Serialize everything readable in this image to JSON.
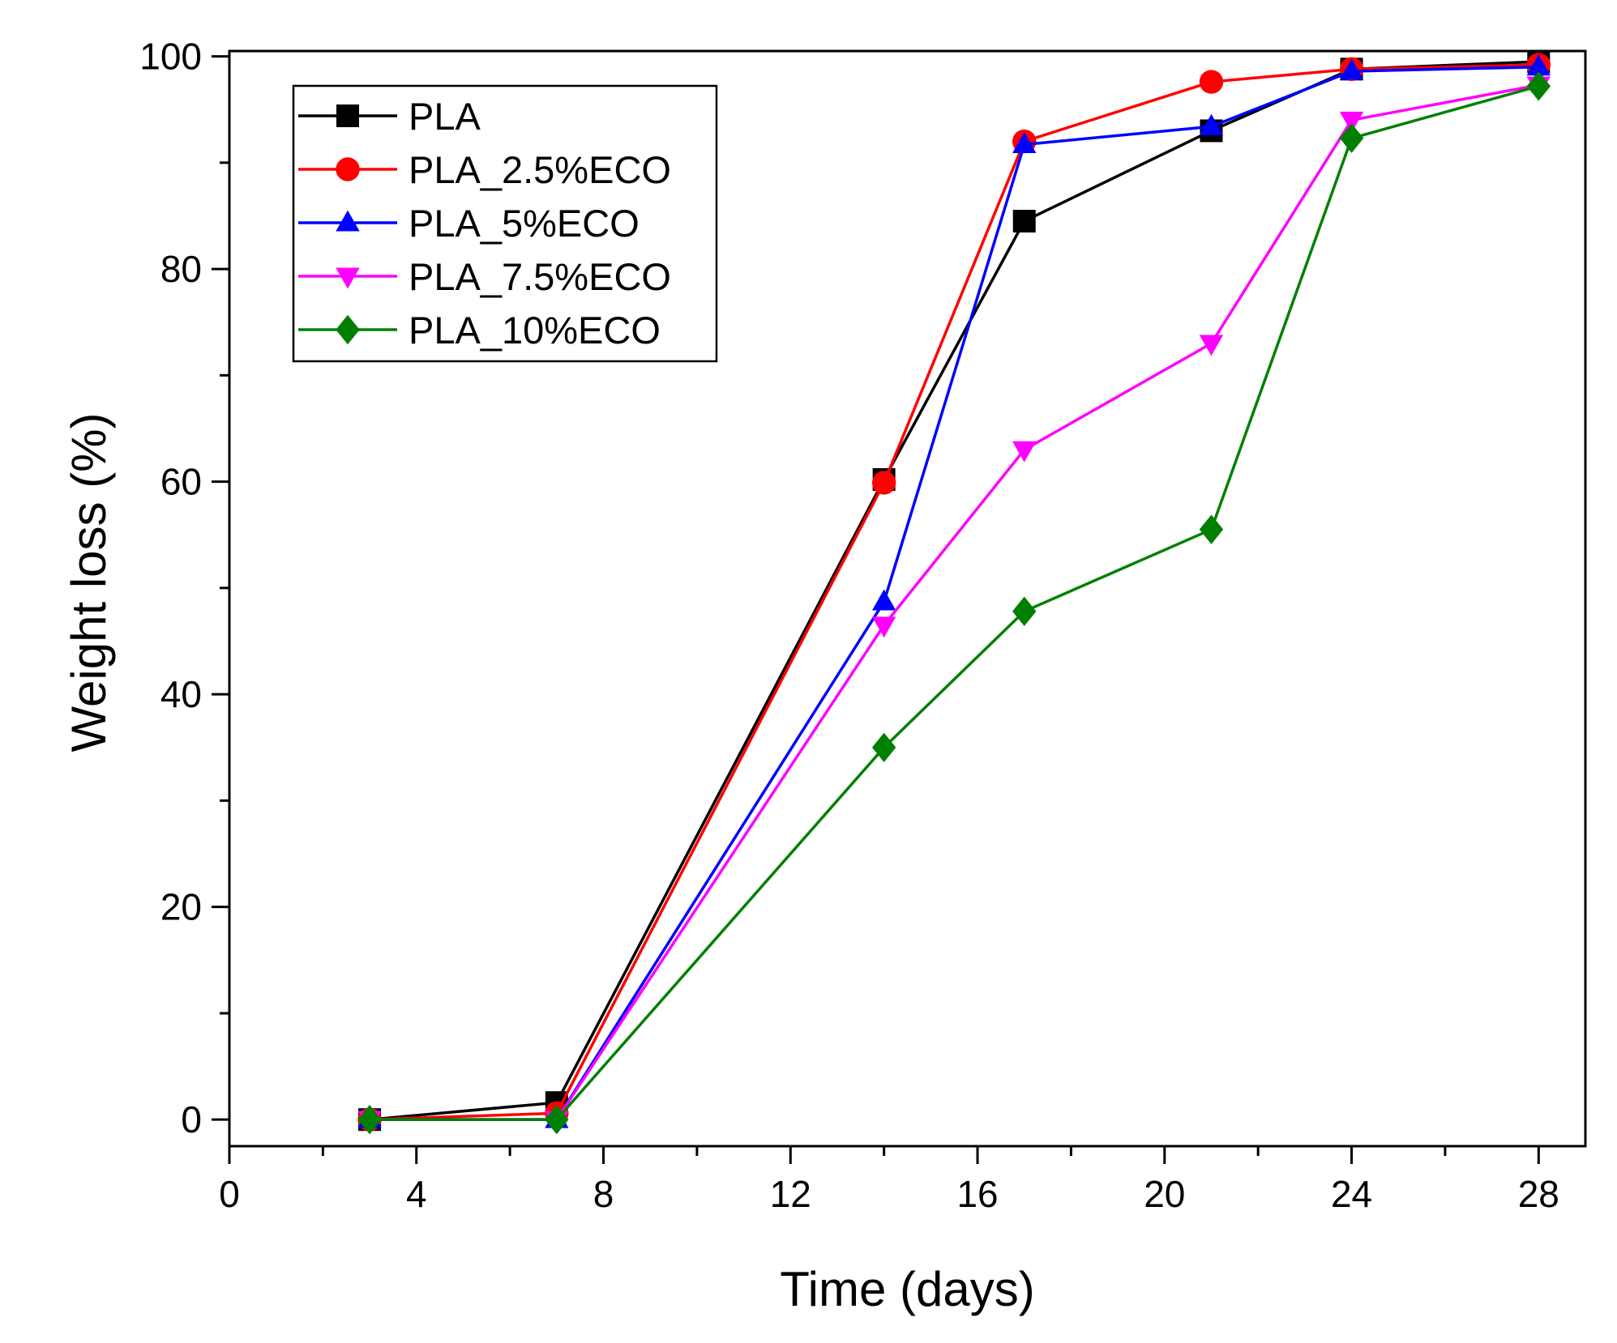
{
  "chart_data": {
    "type": "line",
    "title": "",
    "xlabel": "Time (days)",
    "ylabel": "Weight loss (%)",
    "xlim": [
      0,
      29
    ],
    "ylim": [
      -2.5,
      100.5
    ],
    "x_ticks": [
      0,
      4,
      8,
      12,
      16,
      20,
      24,
      28
    ],
    "y_ticks": [
      0,
      20,
      40,
      60,
      80,
      100
    ],
    "x": [
      3,
      7,
      14,
      17,
      21,
      24,
      28
    ],
    "grid": false,
    "legend_position": "top-left",
    "series": [
      {
        "name": "PLA",
        "color": "#000000",
        "marker": "square",
        "values": [
          0,
          1.6,
          60.2,
          84.5,
          93.0,
          98.8,
          99.5
        ]
      },
      {
        "name": "PLA_2.5%ECO",
        "color": "#ff0000",
        "marker": "circle",
        "values": [
          0,
          0.6,
          59.9,
          92.0,
          97.6,
          98.8,
          99.2
        ]
      },
      {
        "name": "PLA_5%ECO",
        "color": "#0000ff",
        "marker": "triangle-up",
        "values": [
          0,
          0,
          48.7,
          91.7,
          93.4,
          98.6,
          99.0
        ]
      },
      {
        "name": "PLA_7.5%ECO",
        "color": "#ff00ff",
        "marker": "triangle-down",
        "values": [
          0,
          0,
          46.5,
          63.0,
          73.0,
          94.0,
          97.3
        ]
      },
      {
        "name": "PLA_10%ECO",
        "color": "#008000",
        "marker": "diamond",
        "values": [
          0,
          0,
          35.0,
          47.8,
          55.5,
          92.3,
          97.2
        ]
      }
    ]
  }
}
